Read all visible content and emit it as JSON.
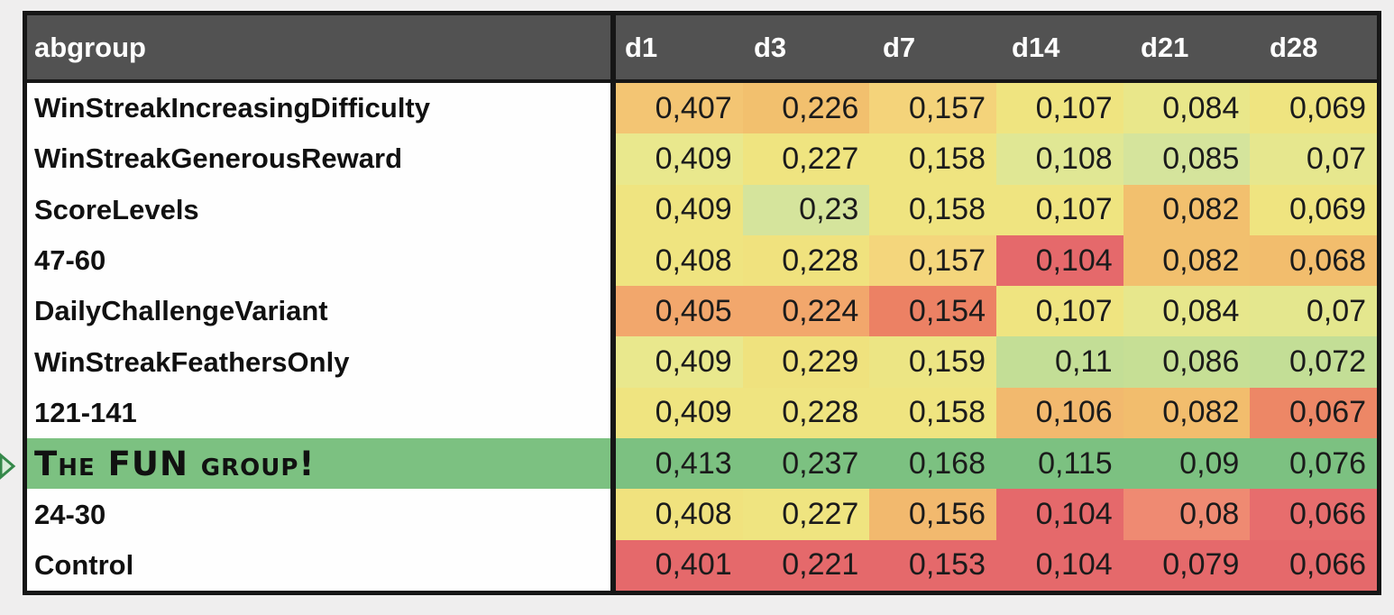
{
  "table": {
    "group_header": "abgroup",
    "day_headers": [
      "d1",
      "d3",
      "d7",
      "d14",
      "d21",
      "d28"
    ],
    "rows": [
      {
        "label": "WinStreakIncreasingDifficulty",
        "fun": false,
        "cells": [
          {
            "v": "0,407",
            "bg": "#f3c573"
          },
          {
            "v": "0,226",
            "bg": "#f2c06e"
          },
          {
            "v": "0,157",
            "bg": "#f4d37a"
          },
          {
            "v": "0,107",
            "bg": "#efe480"
          },
          {
            "v": "0,084",
            "bg": "#e9e78a"
          },
          {
            "v": "0,069",
            "bg": "#efe480"
          }
        ]
      },
      {
        "label": "WinStreakGenerousReward",
        "fun": false,
        "cells": [
          {
            "v": "0,409",
            "bg": "#e9e88d"
          },
          {
            "v": "0,227",
            "bg": "#efe480"
          },
          {
            "v": "0,158",
            "bg": "#efe480"
          },
          {
            "v": "0,108",
            "bg": "#e0e794"
          },
          {
            "v": "0,085",
            "bg": "#d5e49c"
          },
          {
            "v": "0,07",
            "bg": "#e6e78e"
          }
        ]
      },
      {
        "label": "ScoreLevels",
        "fun": false,
        "cells": [
          {
            "v": "0,409",
            "bg": "#efe480"
          },
          {
            "v": "0,23",
            "bg": "#d5e49c"
          },
          {
            "v": "0,158",
            "bg": "#efe480"
          },
          {
            "v": "0,107",
            "bg": "#efe480"
          },
          {
            "v": "0,082",
            "bg": "#f2c06e"
          },
          {
            "v": "0,069",
            "bg": "#efe480"
          }
        ]
      },
      {
        "label": "47-60",
        "fun": false,
        "cells": [
          {
            "v": "0,408",
            "bg": "#efe480"
          },
          {
            "v": "0,228",
            "bg": "#f0e27e"
          },
          {
            "v": "0,157",
            "bg": "#f4d67c"
          },
          {
            "v": "0,104",
            "bg": "#e5696b"
          },
          {
            "v": "0,082",
            "bg": "#f2c06e"
          },
          {
            "v": "0,068",
            "bg": "#f2bd6d"
          }
        ]
      },
      {
        "label": "DailyChallengeVariant",
        "fun": false,
        "cells": [
          {
            "v": "0,405",
            "bg": "#f2a76c"
          },
          {
            "v": "0,224",
            "bg": "#f2a76c"
          },
          {
            "v": "0,154",
            "bg": "#ec8164"
          },
          {
            "v": "0,107",
            "bg": "#efe480"
          },
          {
            "v": "0,084",
            "bg": "#e7e78c"
          },
          {
            "v": "0,07",
            "bg": "#e4e78e"
          }
        ]
      },
      {
        "label": "WinStreakFeathersOnly",
        "fun": false,
        "cells": [
          {
            "v": "0,409",
            "bg": "#e9e88d"
          },
          {
            "v": "0,229",
            "bg": "#efe27e"
          },
          {
            "v": "0,159",
            "bg": "#ece584"
          },
          {
            "v": "0,11",
            "bg": "#c3de96"
          },
          {
            "v": "0,086",
            "bg": "#c6df95"
          },
          {
            "v": "0,072",
            "bg": "#c3de96"
          }
        ]
      },
      {
        "label": "121-141",
        "fun": false,
        "cells": [
          {
            "v": "0,409",
            "bg": "#efe480"
          },
          {
            "v": "0,228",
            "bg": "#efe480"
          },
          {
            "v": "0,158",
            "bg": "#efe480"
          },
          {
            "v": "0,106",
            "bg": "#f2b96e"
          },
          {
            "v": "0,082",
            "bg": "#f2bd6d"
          },
          {
            "v": "0,067",
            "bg": "#ed8766"
          }
        ]
      },
      {
        "label": "The FUN group!",
        "fun": true,
        "cells": [
          {
            "v": "0,413",
            "bg": "#7cc181"
          },
          {
            "v": "0,237",
            "bg": "#7cc181"
          },
          {
            "v": "0,168",
            "bg": "#7cc181"
          },
          {
            "v": "0,115",
            "bg": "#7cc181"
          },
          {
            "v": "0,09",
            "bg": "#7cc181"
          },
          {
            "v": "0,076",
            "bg": "#7cc181"
          }
        ]
      },
      {
        "label": "24-30",
        "fun": false,
        "cells": [
          {
            "v": "0,408",
            "bg": "#f0e27e"
          },
          {
            "v": "0,227",
            "bg": "#efe480"
          },
          {
            "v": "0,156",
            "bg": "#f2b96e"
          },
          {
            "v": "0,104",
            "bg": "#e5696b"
          },
          {
            "v": "0,08",
            "bg": "#ef8a72"
          },
          {
            "v": "0,066",
            "bg": "#e76d6d"
          }
        ]
      },
      {
        "label": "Control",
        "fun": false,
        "cells": [
          {
            "v": "0,401",
            "bg": "#e5696b"
          },
          {
            "v": "0,221",
            "bg": "#e5696b"
          },
          {
            "v": "0,153",
            "bg": "#e5696b"
          },
          {
            "v": "0,104",
            "bg": "#e5696b"
          },
          {
            "v": "0,079",
            "bg": "#e5696b"
          },
          {
            "v": "0,066",
            "bg": "#e5696b"
          }
        ]
      }
    ]
  },
  "colors": {
    "header_bg": "#525252",
    "header_text": "#ffffff",
    "border": "#161616",
    "label_bg": "#fefefe",
    "highlight_green": "#7cc181",
    "arrow_green": "#35884a",
    "arrow_fill": "#d7ecd9",
    "page_bg": "#efeeee"
  },
  "chart_data": {
    "type": "heatmap",
    "columns": [
      "d1",
      "d3",
      "d7",
      "d14",
      "d21",
      "d28"
    ],
    "rows": [
      "WinStreakIncreasingDifficulty",
      "WinStreakGenerousReward",
      "ScoreLevels",
      "47-60",
      "DailyChallengeVariant",
      "WinStreakFeathersOnly",
      "121-141",
      "The FUN group!",
      "24-30",
      "Control"
    ],
    "values": [
      [
        0.407,
        0.226,
        0.157,
        0.107,
        0.084,
        0.069
      ],
      [
        0.409,
        0.227,
        0.158,
        0.108,
        0.085,
        0.07
      ],
      [
        0.409,
        0.23,
        0.158,
        0.107,
        0.082,
        0.069
      ],
      [
        0.408,
        0.228,
        0.157,
        0.104,
        0.082,
        0.068
      ],
      [
        0.405,
        0.224,
        0.154,
        0.107,
        0.084,
        0.07
      ],
      [
        0.409,
        0.229,
        0.159,
        0.11,
        0.086,
        0.072
      ],
      [
        0.409,
        0.228,
        0.158,
        0.106,
        0.082,
        0.067
      ],
      [
        0.413,
        0.237,
        0.168,
        0.115,
        0.09,
        0.076
      ],
      [
        0.408,
        0.227,
        0.156,
        0.104,
        0.08,
        0.066
      ],
      [
        0.401,
        0.221,
        0.153,
        0.104,
        0.079,
        0.066
      ]
    ],
    "value_format": "decimal-comma",
    "row_header_label": "abgroup",
    "highlighted_row": "The FUN group!",
    "color_scale": "red-yellow-green retention heatmap",
    "legend": "none",
    "grid": false
  }
}
